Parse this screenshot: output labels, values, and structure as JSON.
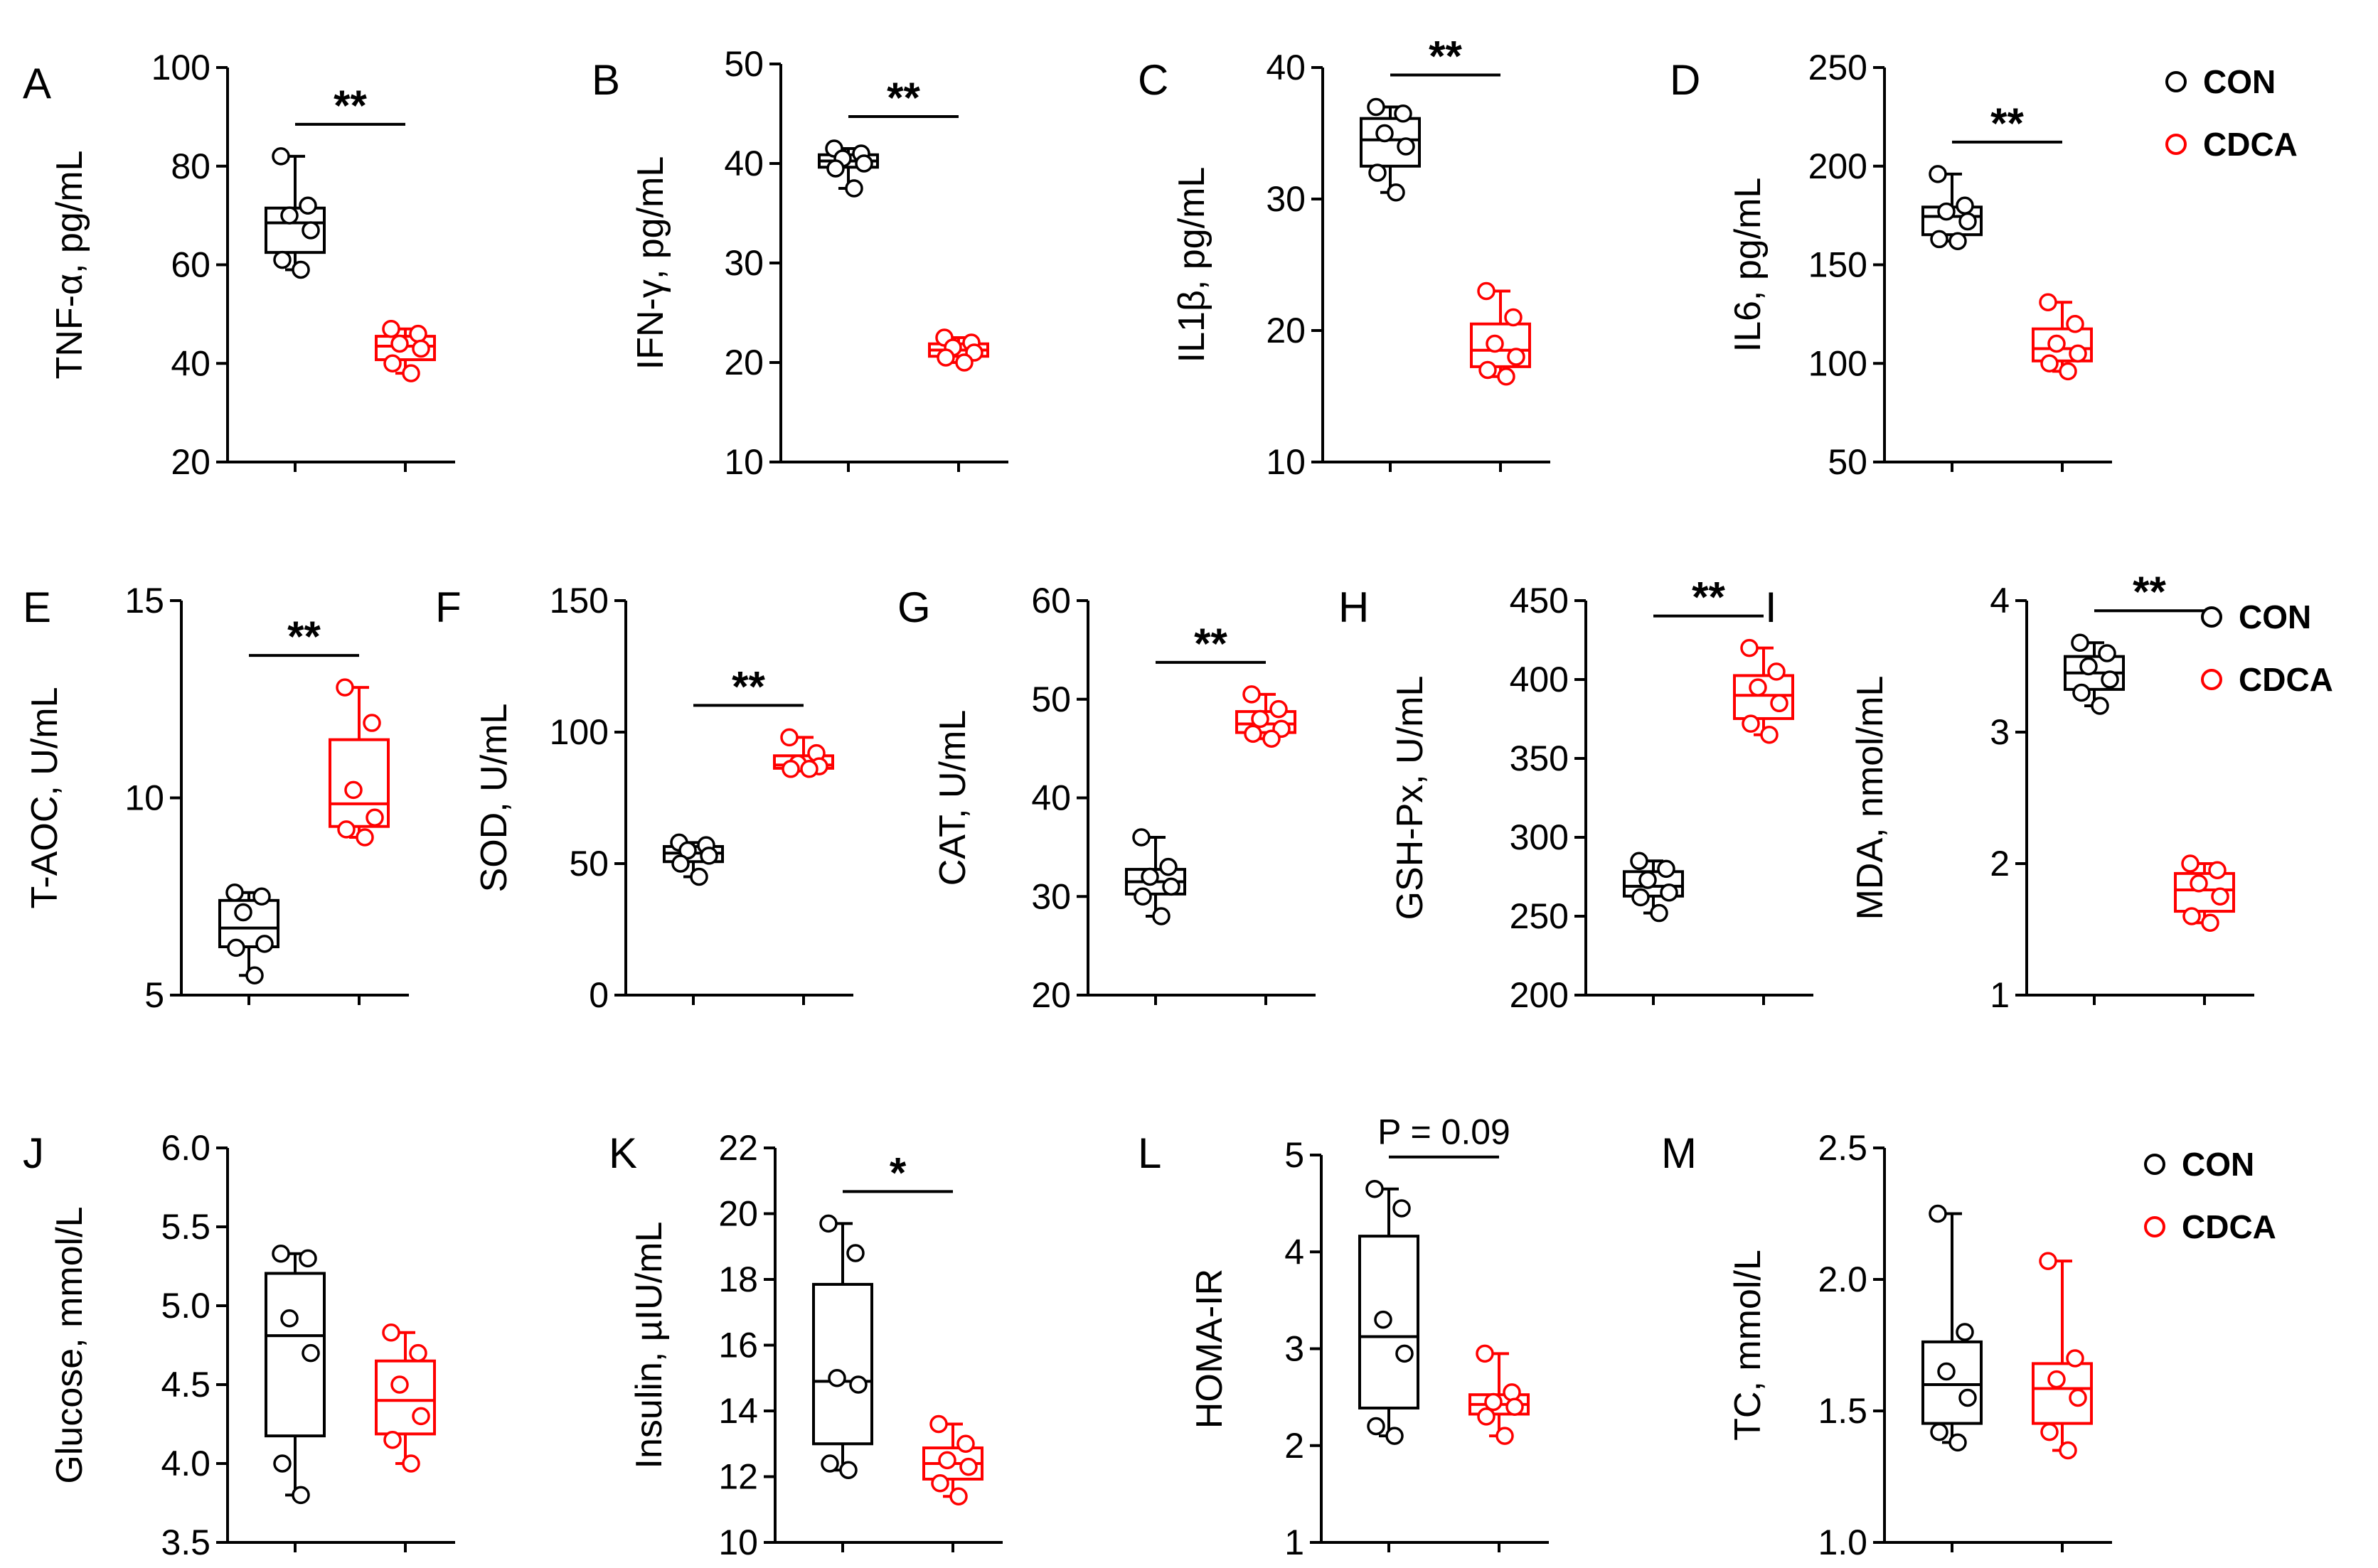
{
  "legend": [
    {
      "name": "CON",
      "color": "#000000"
    },
    {
      "name": "CDCA",
      "color": "#ff0000"
    }
  ],
  "chart_data": [
    {
      "type": "box",
      "panel": "A",
      "ylabel": "TNF-α, pg/mL",
      "ylim": [
        20,
        100
      ],
      "yticks": [
        20,
        40,
        60,
        80,
        100
      ],
      "significance": "**",
      "series": [
        {
          "name": "CON",
          "values": [
            82,
            72,
            70,
            67,
            61,
            59
          ]
        },
        {
          "name": "CDCA",
          "values": [
            47,
            46,
            44,
            43,
            40,
            38
          ]
        }
      ]
    },
    {
      "type": "box",
      "panel": "B",
      "ylabel": "IFN-γ, pg/mL",
      "ylim": [
        10,
        50
      ],
      "yticks": [
        10,
        20,
        30,
        40,
        50
      ],
      "significance": "**",
      "series": [
        {
          "name": "CON",
          "values": [
            41.5,
            41,
            40.5,
            40,
            39.5,
            37.5
          ]
        },
        {
          "name": "CDCA",
          "values": [
            22.5,
            22,
            21.5,
            21,
            20.5,
            20
          ]
        }
      ]
    },
    {
      "type": "box",
      "panel": "C",
      "ylabel": "IL1β, pg/mL",
      "ylim": [
        10,
        40
      ],
      "yticks": [
        10,
        20,
        30,
        40
      ],
      "significance": "**",
      "series": [
        {
          "name": "CON",
          "values": [
            37,
            36.5,
            35,
            34,
            32,
            30.5
          ]
        },
        {
          "name": "CDCA",
          "values": [
            23,
            21,
            19,
            18,
            17,
            16.5
          ]
        }
      ]
    },
    {
      "type": "box",
      "panel": "D",
      "ylabel": "IL6, pg/mL",
      "ylim": [
        50,
        250
      ],
      "yticks": [
        50,
        100,
        150,
        200,
        250
      ],
      "significance": "**",
      "series": [
        {
          "name": "CON",
          "values": [
            196,
            180,
            177,
            172,
            163,
            162
          ]
        },
        {
          "name": "CDCA",
          "values": [
            131,
            120,
            110,
            105,
            100,
            96
          ]
        }
      ]
    },
    {
      "type": "box",
      "panel": "E",
      "ylabel": "T-AOC, U/mL",
      "ylim": [
        5,
        15
      ],
      "yticks": [
        5,
        10,
        15
      ],
      "significance": "**",
      "series": [
        {
          "name": "CON",
          "values": [
            7.6,
            7.5,
            7.1,
            6.3,
            6.2,
            5.5
          ]
        },
        {
          "name": "CDCA",
          "values": [
            12.8,
            11.9,
            10.2,
            9.5,
            9.2,
            9.0
          ]
        }
      ]
    },
    {
      "type": "box",
      "panel": "F",
      "ylabel": "SOD, U/mL",
      "ylim": [
        0,
        150
      ],
      "yticks": [
        0,
        50,
        100,
        150
      ],
      "significance": "**",
      "series": [
        {
          "name": "CON",
          "values": [
            58,
            57,
            55,
            53,
            50,
            45
          ]
        },
        {
          "name": "CDCA",
          "values": [
            98,
            92,
            88,
            87,
            86,
            86
          ]
        }
      ]
    },
    {
      "type": "box",
      "panel": "G",
      "ylabel": "CAT, U/mL",
      "ylim": [
        20,
        60
      ],
      "yticks": [
        20,
        30,
        40,
        50,
        60
      ],
      "significance": "**",
      "series": [
        {
          "name": "CON",
          "values": [
            36,
            33,
            32,
            31,
            30,
            28
          ]
        },
        {
          "name": "CDCA",
          "values": [
            50.5,
            49,
            48,
            47,
            46.5,
            46
          ]
        }
      ]
    },
    {
      "type": "box",
      "panel": "H",
      "ylabel": "GSH-Px, U/mL",
      "ylim": [
        200,
        450
      ],
      "yticks": [
        200,
        250,
        300,
        350,
        400,
        450
      ],
      "significance": "**",
      "series": [
        {
          "name": "CON",
          "values": [
            285,
            280,
            273,
            265,
            262,
            252
          ]
        },
        {
          "name": "CDCA",
          "values": [
            420,
            405,
            395,
            385,
            372,
            365
          ]
        }
      ]
    },
    {
      "type": "box",
      "panel": "I",
      "ylabel": "MDA, nmol/mL",
      "ylim": [
        1,
        4
      ],
      "yticks": [
        1,
        2,
        3,
        4
      ],
      "significance": "**",
      "series": [
        {
          "name": "CON",
          "values": [
            3.68,
            3.6,
            3.5,
            3.4,
            3.3,
            3.2
          ]
        },
        {
          "name": "CDCA",
          "values": [
            2.0,
            1.95,
            1.85,
            1.75,
            1.6,
            1.55
          ]
        }
      ]
    },
    {
      "type": "box",
      "panel": "J",
      "ylabel": "Glucose, mmol/L",
      "ylim": [
        3.5,
        6.0
      ],
      "yticks": [
        "3.5",
        "4.0",
        "4.5",
        "5.0",
        "5.5",
        "6.0"
      ],
      "significance": "",
      "series": [
        {
          "name": "CON",
          "values": [
            5.33,
            5.3,
            4.92,
            4.7,
            4.0,
            3.8
          ]
        },
        {
          "name": "CDCA",
          "values": [
            4.83,
            4.7,
            4.5,
            4.3,
            4.15,
            4.0
          ]
        }
      ]
    },
    {
      "type": "box",
      "panel": "K",
      "ylabel": "Insulin, µIU/mL",
      "ylim": [
        10,
        22
      ],
      "yticks": [
        10,
        12,
        14,
        16,
        18,
        20,
        22
      ],
      "significance": "*",
      "series": [
        {
          "name": "CON",
          "values": [
            19.7,
            18.8,
            15.0,
            14.8,
            12.4,
            12.2
          ]
        },
        {
          "name": "CDCA",
          "values": [
            13.6,
            13.0,
            12.5,
            12.3,
            11.8,
            11.4
          ]
        }
      ]
    },
    {
      "type": "box",
      "panel": "L",
      "ylabel": "HOMA-IR",
      "ylim": [
        1,
        5
      ],
      "yticks": [
        1,
        2,
        3,
        4,
        5
      ],
      "significance": "P = 0.09",
      "series": [
        {
          "name": "CON",
          "values": [
            4.65,
            4.45,
            3.3,
            2.95,
            2.2,
            2.1
          ]
        },
        {
          "name": "CDCA",
          "values": [
            2.95,
            2.55,
            2.45,
            2.4,
            2.3,
            2.1
          ]
        }
      ]
    },
    {
      "type": "box",
      "panel": "M",
      "ylabel": "TC, mmol/L",
      "ylim": [
        1.0,
        2.5
      ],
      "yticks": [
        "1.0",
        "1.5",
        "2.0",
        "2.5"
      ],
      "significance": "",
      "series": [
        {
          "name": "CON",
          "values": [
            2.25,
            1.8,
            1.65,
            1.55,
            1.42,
            1.38
          ]
        },
        {
          "name": "CDCA",
          "values": [
            2.07,
            1.7,
            1.62,
            1.55,
            1.42,
            1.35
          ]
        }
      ]
    }
  ]
}
